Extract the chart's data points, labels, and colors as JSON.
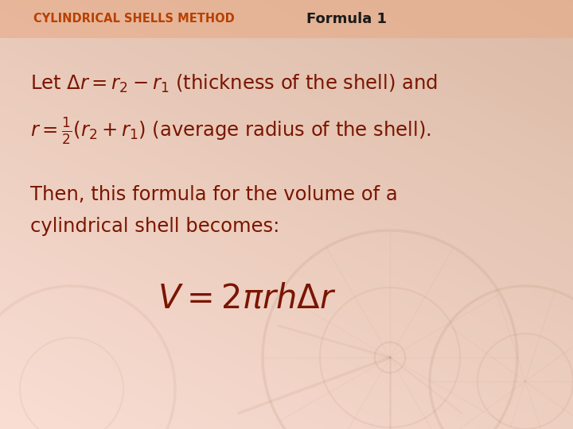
{
  "bg_color": "#f5cdb0",
  "bg_color_light": "#fae8dc",
  "header_bar_color": "#e8a882",
  "header_bar_alpha": 0.55,
  "header_text": "CYLINDRICAL SHELLS METHOD",
  "header_text_color": "#b84000",
  "formula_label": "Formula 1",
  "formula_label_color": "#1a1a1a",
  "main_text_color": "#7a1500",
  "line1": "Let $\\Delta r = r_2 - r_1$ (thickness of the shell) and",
  "line2": "$r = \\frac{1}{2}\\left(r_2 + r_1\\right)$ (average radius of the shell).",
  "para_text1": "Then, this formula for the volume of a",
  "para_text2": "cylindrical shell becomes:",
  "big_formula": "$V = 2\\pi r h \\Delta r$",
  "figsize": [
    7.2,
    5.4
  ],
  "dpi": 100
}
